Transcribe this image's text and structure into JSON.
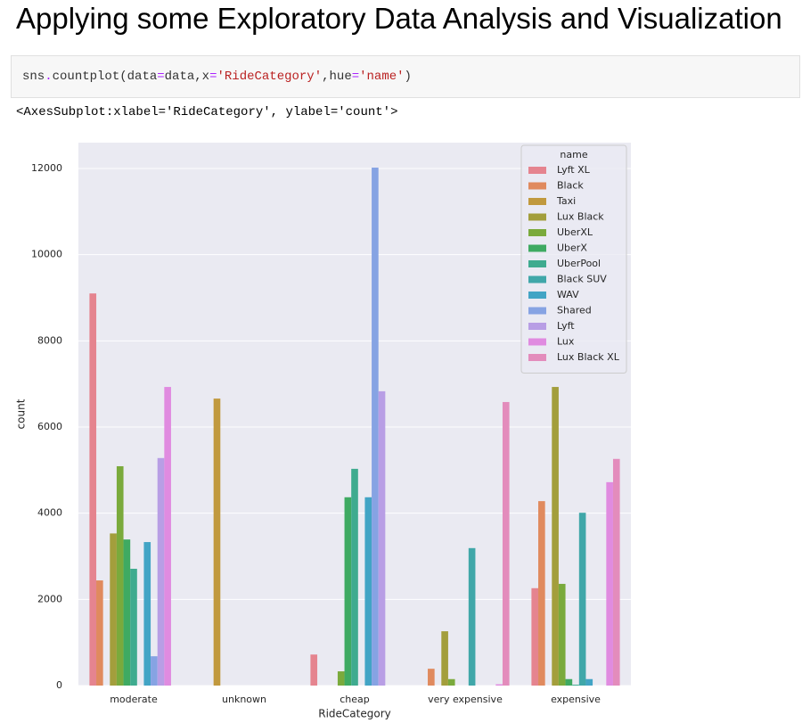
{
  "heading": "Applying some Exploratory Data Analysis and Visualization",
  "code": [
    {
      "text": "sns",
      "color": "#333333"
    },
    {
      "text": ".",
      "color": "#aa22ff"
    },
    {
      "text": "countplot(data",
      "color": "#333333"
    },
    {
      "text": "=",
      "color": "#aa22ff"
    },
    {
      "text": "data,x",
      "color": "#333333"
    },
    {
      "text": "=",
      "color": "#aa22ff"
    },
    {
      "text": "'RideCategory'",
      "color": "#ba2121"
    },
    {
      "text": ",hue",
      "color": "#333333"
    },
    {
      "text": "=",
      "color": "#aa22ff"
    },
    {
      "text": "'name'",
      "color": "#ba2121"
    },
    {
      "text": ")",
      "color": "#333333"
    }
  ],
  "output": "<AxesSubplot:xlabel='RideCategory', ylabel='count'>",
  "chart_data": {
    "type": "bar",
    "x_label": "RideCategory",
    "y_label": "count",
    "categories": [
      "moderate",
      "unknown",
      "cheap",
      "very expensive",
      "expensive"
    ],
    "legend_title": "name",
    "legend": "upper right",
    "grid": true,
    "ylim": [
      0,
      12600
    ],
    "yticks": [
      0,
      2000,
      4000,
      6000,
      8000,
      10000,
      12000
    ],
    "series": [
      {
        "name": "Lyft XL",
        "color": "#e5848f",
        "values": [
          9100,
          0,
          720,
          0,
          2260
        ]
      },
      {
        "name": "Black",
        "color": "#e08a5e",
        "values": [
          2440,
          0,
          0,
          390,
          4280
        ]
      },
      {
        "name": "Taxi",
        "color": "#c1993e",
        "values": [
          0,
          6660,
          0,
          0,
          0
        ]
      },
      {
        "name": "Lux Black",
        "color": "#a39e3c",
        "values": [
          3530,
          0,
          0,
          1260,
          6930
        ]
      },
      {
        "name": "UberXL",
        "color": "#7aaa3c",
        "values": [
          5090,
          0,
          330,
          150,
          2360
        ]
      },
      {
        "name": "UberX",
        "color": "#3faa62",
        "values": [
          3390,
          0,
          4370,
          0,
          150
        ]
      },
      {
        "name": "UberPool",
        "color": "#3fab8f",
        "values": [
          2710,
          0,
          5030,
          0,
          20
        ]
      },
      {
        "name": "Black SUV",
        "color": "#40a7a9",
        "values": [
          0,
          0,
          0,
          3190,
          4010
        ]
      },
      {
        "name": "WAV",
        "color": "#42a4c5",
        "values": [
          3330,
          0,
          4370,
          0,
          150
        ]
      },
      {
        "name": "Shared",
        "color": "#86a3e3",
        "values": [
          680,
          0,
          12020,
          0,
          0
        ]
      },
      {
        "name": "Lyft",
        "color": "#b89ee5",
        "values": [
          5280,
          0,
          6830,
          0,
          0
        ]
      },
      {
        "name": "Lux",
        "color": "#e08be0",
        "values": [
          6930,
          0,
          0,
          30,
          4720
        ]
      },
      {
        "name": "Lux Black XL",
        "color": "#e38cbc",
        "values": [
          0,
          0,
          0,
          6580,
          5260
        ]
      }
    ]
  }
}
